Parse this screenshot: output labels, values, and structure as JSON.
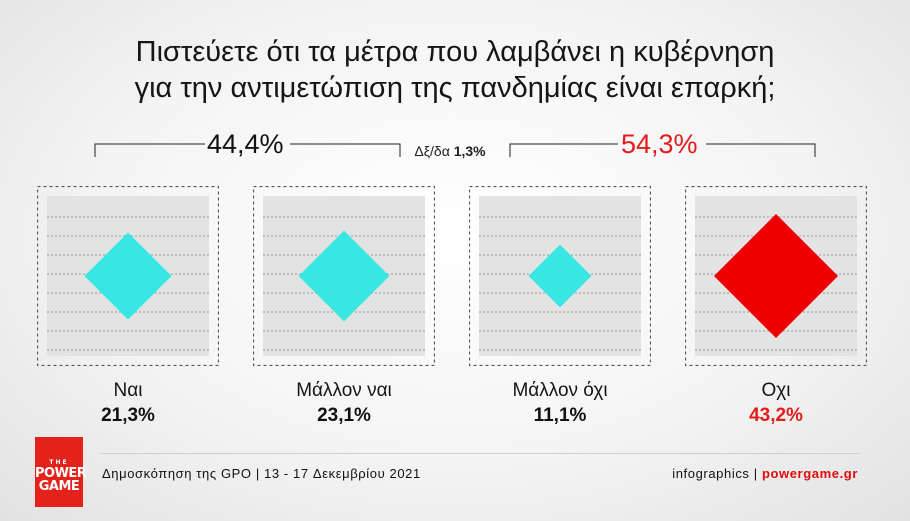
{
  "title_line1": "Πιστεύετε ότι τα μέτρα που λαμβάνει η κυβέρνηση",
  "title_line2": "για την αντιμετώπιση της πανδημίας είναι επαρκή;",
  "group_yes": "44,4%",
  "group_no": "54,3%",
  "margin_label": "Δξ/δα",
  "margin_value": "1,3%",
  "colors": {
    "positive": "#38e6e3",
    "negative": "#ec0000",
    "neg_text": "#e31b1b"
  },
  "chart_data": {
    "type": "diamond-area",
    "categories": [
      "Ναι",
      "Μάλλον ναι",
      "Μάλλον όχι",
      "Οχι"
    ],
    "values": [
      21.3,
      23.1,
      11.1,
      43.2
    ],
    "value_labels": [
      "21,3%",
      "23,1%",
      "11,1%",
      "43,2%"
    ],
    "groups": [
      {
        "label": "44,4%",
        "members": [
          "Ναι",
          "Μάλλον ναι"
        ]
      },
      {
        "label": "54,3%",
        "members": [
          "Μάλλον όχι",
          "Οχι"
        ]
      }
    ]
  },
  "footer": {
    "source": "Δημοσκόπηση της GPO | 13 - 17 Δεκεμβρίου 2021",
    "credit_prefix": "infographics | ",
    "credit_site": "powergame.gr"
  },
  "logo": {
    "top": "THE",
    "line1": "POWER",
    "line2": "GAME"
  }
}
